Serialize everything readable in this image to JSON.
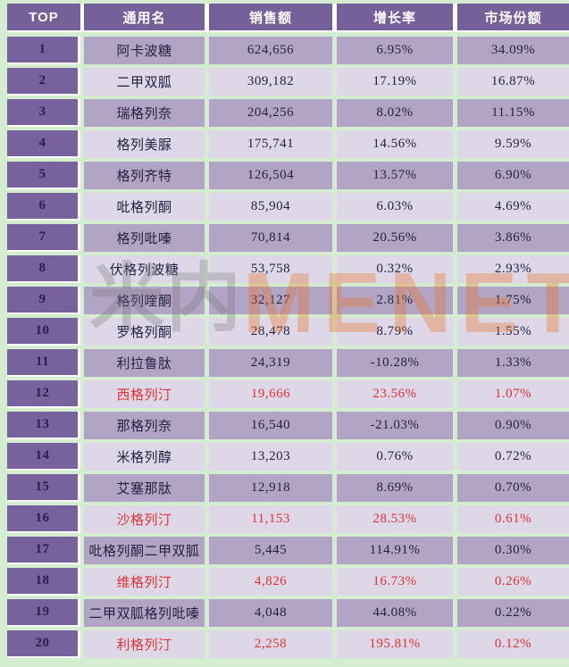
{
  "table": {
    "columns": [
      "TOP",
      "通用名",
      "销售额",
      "增长率",
      "市场份额"
    ],
    "rows": [
      {
        "top": "1",
        "name": "阿卡波糖",
        "sales": "624,656",
        "growth": "6.95%",
        "share": "34.09%",
        "red": false
      },
      {
        "top": "2",
        "name": "二甲双胍",
        "sales": "309,182",
        "growth": "17.19%",
        "share": "16.87%",
        "red": false
      },
      {
        "top": "3",
        "name": "瑞格列奈",
        "sales": "204,256",
        "growth": "8.02%",
        "share": "11.15%",
        "red": false
      },
      {
        "top": "4",
        "name": "格列美脲",
        "sales": "175,741",
        "growth": "14.56%",
        "share": "9.59%",
        "red": false
      },
      {
        "top": "5",
        "name": "格列齐特",
        "sales": "126,504",
        "growth": "13.57%",
        "share": "6.90%",
        "red": false
      },
      {
        "top": "6",
        "name": "吡格列酮",
        "sales": "85,904",
        "growth": "6.03%",
        "share": "4.69%",
        "red": false
      },
      {
        "top": "7",
        "name": "格列吡嗪",
        "sales": "70,814",
        "growth": "20.56%",
        "share": "3.86%",
        "red": false
      },
      {
        "top": "8",
        "name": "伏格列波糖",
        "sales": "53,758",
        "growth": "0.32%",
        "share": "2.93%",
        "red": false
      },
      {
        "top": "9",
        "name": "格列喹酮",
        "sales": "32,127",
        "growth": "2.81%",
        "share": "1.75%",
        "red": false
      },
      {
        "top": "10",
        "name": "罗格列酮",
        "sales": "28,478",
        "growth": "8.79%",
        "share": "1.55%",
        "red": false
      },
      {
        "top": "11",
        "name": "利拉鲁肽",
        "sales": "24,319",
        "growth": "-10.28%",
        "share": "1.33%",
        "red": false
      },
      {
        "top": "12",
        "name": "西格列汀",
        "sales": "19,666",
        "growth": "23.56%",
        "share": "1.07%",
        "red": true
      },
      {
        "top": "13",
        "name": "那格列奈",
        "sales": "16,540",
        "growth": "-21.03%",
        "share": "0.90%",
        "red": false
      },
      {
        "top": "14",
        "name": "米格列醇",
        "sales": "13,203",
        "growth": "0.76%",
        "share": "0.72%",
        "red": false
      },
      {
        "top": "15",
        "name": "艾塞那肽",
        "sales": "12,918",
        "growth": "8.69%",
        "share": "0.70%",
        "red": false
      },
      {
        "top": "16",
        "name": "沙格列汀",
        "sales": "11,153",
        "growth": "28.53%",
        "share": "0.61%",
        "red": true
      },
      {
        "top": "17",
        "name": "吡格列酮二甲双胍",
        "sales": "5,445",
        "growth": "114.91%",
        "share": "0.30%",
        "red": false
      },
      {
        "top": "18",
        "name": "维格列汀",
        "sales": "4,826",
        "growth": "16.73%",
        "share": "0.26%",
        "red": true
      },
      {
        "top": "19",
        "name": "二甲双胍格列吡嗪",
        "sales": "4,048",
        "growth": "44.08%",
        "share": "0.22%",
        "red": false
      },
      {
        "top": "20",
        "name": "利格列汀",
        "sales": "2,258",
        "growth": "195.81%",
        "share": "0.12%",
        "red": true
      }
    ]
  },
  "watermark": {
    "cn": "米内",
    "en": "MENET"
  },
  "colors": {
    "background_green": "#d4ecd0",
    "header_purple": "#75609a",
    "rank_column_purple": "#77629d",
    "row_odd_purple": "#b2a4c4",
    "row_even_lavender": "#ddd7e7",
    "highlight_red": "#de3434",
    "dark_text": "#242343",
    "watermark_orange": "#ee7220",
    "watermark_gray": "#78787d"
  }
}
